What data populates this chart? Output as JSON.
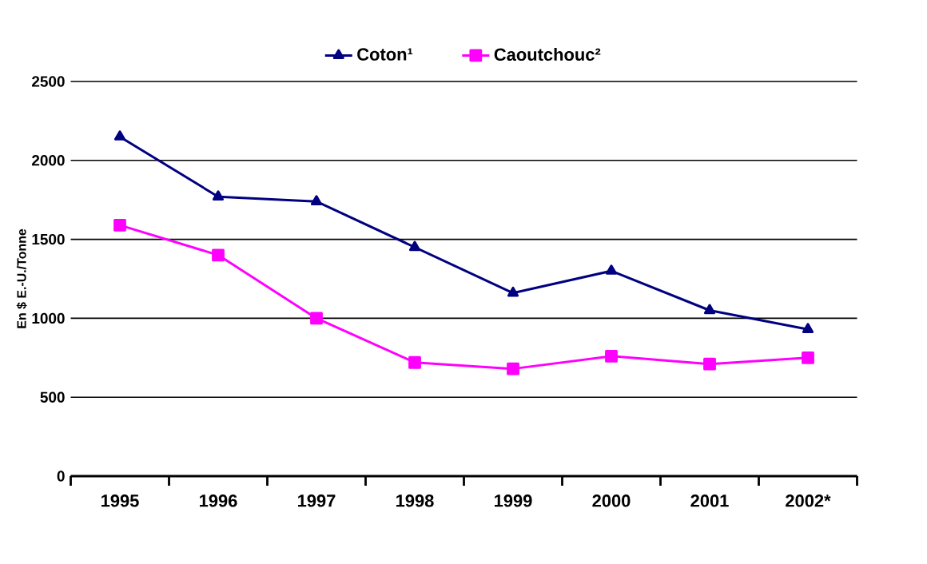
{
  "chart_data": {
    "type": "line",
    "ylabel": "En $ E.-U./Tonne",
    "categories": [
      "1995",
      "1996",
      "1997",
      "1998",
      "1999",
      "2000",
      "2001",
      "2002*"
    ],
    "series": [
      {
        "name": "Coton¹",
        "color": "#000080",
        "marker": "triangle",
        "values": [
          2150,
          1770,
          1740,
          1450,
          1160,
          1300,
          1050,
          930
        ]
      },
      {
        "name": "Caoutchouc²",
        "color": "#ff00ff",
        "marker": "square",
        "values": [
          1590,
          1400,
          1000,
          720,
          680,
          760,
          710,
          750
        ]
      }
    ],
    "ylim": [
      0,
      2500
    ],
    "yticks": [
      0,
      500,
      1000,
      1500,
      2000,
      2500
    ],
    "grid": "y",
    "legend": "top"
  }
}
